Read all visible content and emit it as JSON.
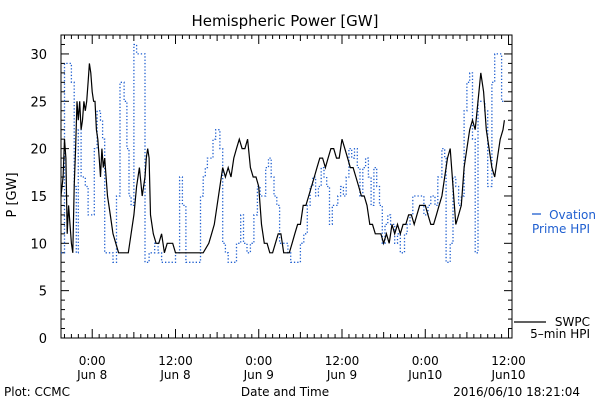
{
  "chart_data": {
    "type": "line",
    "title": "Hemispheric Power [GW]",
    "ylabel": "P [GW]",
    "xlabel": "Date and Time",
    "ylim": [
      0,
      32
    ],
    "xlim": [
      -4.5,
      60.5
    ],
    "x_units": "hours from 2016-06-08 00:00 UT",
    "yticks": [
      0,
      5,
      10,
      15,
      20,
      25,
      30
    ],
    "xticks": [
      {
        "x": 0,
        "line1": "0:00",
        "line2": "Jun 8"
      },
      {
        "x": 12,
        "line1": "12:00",
        "line2": "Jun 8"
      },
      {
        "x": 24,
        "line1": "0:00",
        "line2": "Jun 9"
      },
      {
        "x": 36,
        "line1": "12:00",
        "line2": "Jun 9"
      },
      {
        "x": 48,
        "line1": "0:00",
        "line2": "Jun10"
      },
      {
        "x": 60,
        "line1": "12:00",
        "line2": "Jun10"
      }
    ],
    "series": [
      {
        "name": "Ovation Prime HPI",
        "legend_lines": [
          "Ovation",
          "Prime HPI"
        ],
        "color": "#1f5fd0",
        "style": "dotted-step",
        "points": [
          [
            -4.5,
            9
          ],
          [
            -4.2,
            9
          ],
          [
            -4.0,
            29
          ],
          [
            -3.4,
            29
          ],
          [
            -3.0,
            27
          ],
          [
            -2.6,
            16
          ],
          [
            -2.3,
            9
          ],
          [
            -2.0,
            22
          ],
          [
            -1.6,
            17
          ],
          [
            -1.0,
            16
          ],
          [
            -0.6,
            13
          ],
          [
            0.0,
            13
          ],
          [
            0.3,
            20
          ],
          [
            0.7,
            24
          ],
          [
            1.2,
            23
          ],
          [
            1.5,
            21
          ],
          [
            1.8,
            9
          ],
          [
            2.6,
            9
          ],
          [
            3.0,
            8
          ],
          [
            3.5,
            15
          ],
          [
            4.0,
            27
          ],
          [
            4.6,
            25
          ],
          [
            5.0,
            20
          ],
          [
            5.3,
            15
          ],
          [
            5.6,
            14
          ],
          [
            6.0,
            31
          ],
          [
            6.4,
            30
          ],
          [
            7.2,
            30
          ],
          [
            7.6,
            8
          ],
          [
            8.2,
            9
          ],
          [
            9.0,
            10
          ],
          [
            9.5,
            9
          ],
          [
            10.0,
            8
          ],
          [
            11.6,
            8
          ],
          [
            12.0,
            9
          ],
          [
            12.6,
            17
          ],
          [
            13.0,
            14
          ],
          [
            13.5,
            8
          ],
          [
            15.0,
            8
          ],
          [
            15.6,
            15
          ],
          [
            16.0,
            17
          ],
          [
            16.3,
            18
          ],
          [
            16.6,
            19
          ],
          [
            17.4,
            21
          ],
          [
            17.8,
            22
          ],
          [
            18.4,
            20
          ],
          [
            18.8,
            10
          ],
          [
            19.2,
            9
          ],
          [
            19.6,
            8
          ],
          [
            20.4,
            8
          ],
          [
            20.8,
            10
          ],
          [
            21.4,
            13
          ],
          [
            21.8,
            10
          ],
          [
            22.3,
            9
          ],
          [
            22.8,
            10
          ],
          [
            23.3,
            13
          ],
          [
            23.8,
            16
          ],
          [
            24.2,
            15
          ],
          [
            24.6,
            15
          ],
          [
            25.0,
            18
          ],
          [
            25.4,
            19
          ],
          [
            25.8,
            17
          ],
          [
            26.2,
            15
          ],
          [
            26.6,
            14
          ],
          [
            27.0,
            10
          ],
          [
            28.2,
            9
          ],
          [
            28.6,
            8
          ],
          [
            29.6,
            8
          ],
          [
            30.0,
            10
          ],
          [
            30.5,
            11
          ],
          [
            31.0,
            14
          ],
          [
            31.4,
            16
          ],
          [
            31.8,
            17
          ],
          [
            32.2,
            15
          ],
          [
            32.6,
            16
          ],
          [
            33.0,
            18
          ],
          [
            33.4,
            17
          ],
          [
            33.8,
            16
          ],
          [
            34.2,
            12
          ],
          [
            34.6,
            14
          ],
          [
            35.4,
            15
          ],
          [
            35.8,
            16
          ],
          [
            36.2,
            15
          ],
          [
            36.6,
            17
          ],
          [
            37.0,
            20
          ],
          [
            37.4,
            19
          ],
          [
            37.8,
            20
          ],
          [
            38.2,
            18
          ],
          [
            38.6,
            15
          ],
          [
            39.0,
            18
          ],
          [
            39.4,
            19
          ],
          [
            39.8,
            17
          ],
          [
            40.2,
            14
          ],
          [
            40.6,
            18
          ],
          [
            41.0,
            16
          ],
          [
            41.4,
            14
          ],
          [
            41.8,
            10
          ],
          [
            42.2,
            12
          ],
          [
            42.6,
            13
          ],
          [
            43.0,
            12
          ],
          [
            43.6,
            10
          ],
          [
            44.0,
            11
          ],
          [
            44.4,
            9
          ],
          [
            45.0,
            11
          ],
          [
            45.4,
            12
          ],
          [
            45.8,
            13
          ],
          [
            46.2,
            15
          ],
          [
            47.4,
            15
          ],
          [
            47.8,
            13
          ],
          [
            48.4,
            14
          ],
          [
            48.8,
            15
          ],
          [
            49.4,
            14
          ],
          [
            49.8,
            17
          ],
          [
            50.4,
            20
          ],
          [
            50.8,
            19
          ],
          [
            51.0,
            8
          ],
          [
            51.6,
            10
          ],
          [
            52.0,
            17
          ],
          [
            52.4,
            16
          ],
          [
            52.8,
            14
          ],
          [
            53.2,
            15
          ],
          [
            53.6,
            24
          ],
          [
            54.0,
            27
          ],
          [
            54.4,
            28
          ],
          [
            54.8,
            21
          ],
          [
            55.2,
            9
          ],
          [
            55.6,
            25
          ],
          [
            56.2,
            25
          ],
          [
            56.6,
            24
          ],
          [
            57.0,
            16
          ],
          [
            57.6,
            27
          ],
          [
            58.0,
            30
          ],
          [
            58.6,
            30
          ],
          [
            59.0,
            25
          ],
          [
            59.4,
            25
          ]
        ]
      },
      {
        "name": "SWPC 5-min HPI",
        "legend_lines": [
          "SWPC",
          "5–min HPI"
        ],
        "color": "#000000",
        "style": "solid",
        "points": [
          [
            -4.5,
            15
          ],
          [
            -4.2,
            17
          ],
          [
            -4.0,
            21
          ],
          [
            -3.8,
            19
          ],
          [
            -3.6,
            11
          ],
          [
            -3.4,
            14
          ],
          [
            -3.0,
            10
          ],
          [
            -2.8,
            9
          ],
          [
            -2.6,
            16
          ],
          [
            -2.4,
            20
          ],
          [
            -2.2,
            25
          ],
          [
            -2.0,
            23
          ],
          [
            -1.8,
            25
          ],
          [
            -1.6,
            22
          ],
          [
            -1.4,
            23
          ],
          [
            -1.2,
            25
          ],
          [
            -1.0,
            24
          ],
          [
            -0.8,
            25
          ],
          [
            -0.6,
            27
          ],
          [
            -0.4,
            29
          ],
          [
            -0.2,
            28
          ],
          [
            0.0,
            26
          ],
          [
            0.2,
            25
          ],
          [
            0.4,
            25
          ],
          [
            0.6,
            22
          ],
          [
            0.8,
            21
          ],
          [
            1.0,
            19
          ],
          [
            1.2,
            17
          ],
          [
            1.4,
            20
          ],
          [
            1.6,
            18
          ],
          [
            1.8,
            19
          ],
          [
            2.0,
            17
          ],
          [
            2.2,
            15
          ],
          [
            2.6,
            13
          ],
          [
            3.0,
            11
          ],
          [
            3.4,
            10
          ],
          [
            3.8,
            9
          ],
          [
            4.2,
            9
          ],
          [
            5.2,
            9
          ],
          [
            5.6,
            11
          ],
          [
            6.0,
            13
          ],
          [
            6.4,
            16
          ],
          [
            6.8,
            18
          ],
          [
            7.2,
            15
          ],
          [
            7.6,
            17
          ],
          [
            7.8,
            19
          ],
          [
            8.0,
            20
          ],
          [
            8.2,
            19
          ],
          [
            8.4,
            13
          ],
          [
            8.8,
            11
          ],
          [
            9.2,
            10
          ],
          [
            9.6,
            10
          ],
          [
            10.0,
            11
          ],
          [
            10.4,
            9
          ],
          [
            10.8,
            10
          ],
          [
            11.6,
            10
          ],
          [
            12.0,
            9
          ],
          [
            13.0,
            9
          ],
          [
            14.0,
            9
          ],
          [
            15.0,
            9
          ],
          [
            16.0,
            9
          ],
          [
            16.8,
            10
          ],
          [
            17.2,
            11
          ],
          [
            17.6,
            12
          ],
          [
            18.0,
            14
          ],
          [
            18.4,
            16
          ],
          [
            18.8,
            18
          ],
          [
            19.2,
            17
          ],
          [
            19.6,
            18
          ],
          [
            20.0,
            17
          ],
          [
            20.4,
            19
          ],
          [
            20.8,
            20
          ],
          [
            21.2,
            21
          ],
          [
            21.6,
            20
          ],
          [
            22.0,
            20
          ],
          [
            22.4,
            21
          ],
          [
            22.8,
            18
          ],
          [
            23.2,
            17
          ],
          [
            23.6,
            17
          ],
          [
            24.0,
            16
          ],
          [
            24.4,
            12
          ],
          [
            24.8,
            10
          ],
          [
            25.2,
            10
          ],
          [
            25.6,
            9
          ],
          [
            26.0,
            9
          ],
          [
            26.4,
            10
          ],
          [
            26.8,
            11
          ],
          [
            27.2,
            11
          ],
          [
            27.6,
            9
          ],
          [
            28.0,
            9
          ],
          [
            28.4,
            9
          ],
          [
            28.8,
            10
          ],
          [
            29.2,
            11
          ],
          [
            29.6,
            12
          ],
          [
            30.0,
            12
          ],
          [
            30.4,
            14
          ],
          [
            30.8,
            14
          ],
          [
            31.2,
            15
          ],
          [
            31.6,
            16
          ],
          [
            32.0,
            17
          ],
          [
            32.4,
            18
          ],
          [
            32.8,
            19
          ],
          [
            33.2,
            19
          ],
          [
            33.6,
            18
          ],
          [
            34.0,
            19
          ],
          [
            34.4,
            20
          ],
          [
            34.8,
            20
          ],
          [
            35.2,
            19
          ],
          [
            35.6,
            19
          ],
          [
            36.0,
            21
          ],
          [
            36.4,
            20
          ],
          [
            36.8,
            19
          ],
          [
            37.2,
            18
          ],
          [
            37.6,
            18
          ],
          [
            38.0,
            17
          ],
          [
            38.4,
            16
          ],
          [
            38.8,
            15
          ],
          [
            39.2,
            15
          ],
          [
            39.6,
            14
          ],
          [
            40.0,
            12
          ],
          [
            40.4,
            12
          ],
          [
            40.8,
            11
          ],
          [
            41.2,
            11
          ],
          [
            41.6,
            11
          ],
          [
            42.0,
            10
          ],
          [
            42.4,
            11
          ],
          [
            42.8,
            10
          ],
          [
            43.2,
            12
          ],
          [
            43.6,
            11
          ],
          [
            44.0,
            12
          ],
          [
            44.4,
            11
          ],
          [
            44.8,
            12
          ],
          [
            45.2,
            12
          ],
          [
            45.6,
            13
          ],
          [
            46.0,
            13
          ],
          [
            46.4,
            12
          ],
          [
            46.8,
            13
          ],
          [
            47.2,
            14
          ],
          [
            47.6,
            14
          ],
          [
            48.0,
            14
          ],
          [
            48.4,
            13
          ],
          [
            48.8,
            12
          ],
          [
            49.2,
            12
          ],
          [
            49.6,
            13
          ],
          [
            50.0,
            14
          ],
          [
            50.4,
            15
          ],
          [
            50.8,
            17
          ],
          [
            51.2,
            19
          ],
          [
            51.6,
            20
          ],
          [
            52.0,
            16
          ],
          [
            52.4,
            12
          ],
          [
            52.8,
            13
          ],
          [
            53.2,
            14
          ],
          [
            53.6,
            18
          ],
          [
            54.0,
            20
          ],
          [
            54.4,
            22
          ],
          [
            54.8,
            23
          ],
          [
            55.2,
            22
          ],
          [
            55.6,
            25
          ],
          [
            56.0,
            28
          ],
          [
            56.4,
            26
          ],
          [
            56.8,
            22
          ],
          [
            57.2,
            20
          ],
          [
            57.6,
            18
          ],
          [
            58.0,
            17
          ],
          [
            58.4,
            19
          ],
          [
            58.8,
            21
          ],
          [
            59.2,
            22
          ],
          [
            59.4,
            23
          ]
        ]
      }
    ],
    "grid": false,
    "legend_position": "right, outside plot"
  },
  "footer": {
    "left": "Plot: CCMC",
    "right": "2016/06/10 18:21:04"
  }
}
